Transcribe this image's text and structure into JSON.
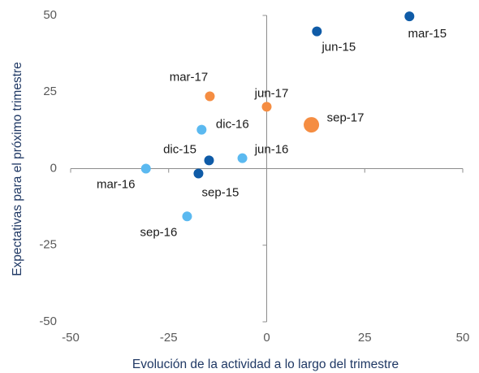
{
  "chart_data": {
    "type": "scatter",
    "x_label": "Evolución de la actividad a lo largo del trimestre",
    "y_label": "Expectativas para el próximo trimestre",
    "xlim": [
      -50,
      50
    ],
    "xticks": [
      -50,
      -25,
      0,
      25,
      50
    ],
    "ylim": [
      -50,
      50
    ],
    "yticks": [
      -50,
      -25,
      0,
      25,
      50
    ],
    "points": [
      {
        "label": "mar-15",
        "x": 36.4,
        "y": 49.7,
        "color": "#0f5ba7"
      },
      {
        "label": "jun-15",
        "x": 12.8,
        "y": 44.8,
        "color": "#0f5ba7"
      },
      {
        "label": "sep-15",
        "x": -17.4,
        "y": -1.6,
        "color": "#0f5ba7"
      },
      {
        "label": "dic-15",
        "x": -14.7,
        "y": 2.7,
        "color": "#0f5ba7"
      },
      {
        "label": "mar-16",
        "x": -30.8,
        "y": 0,
        "color": "#5bb9f0"
      },
      {
        "label": "jun-16",
        "x": -6.2,
        "y": 3.4,
        "color": "#5bb9f0"
      },
      {
        "label": "sep-16",
        "x": -20.3,
        "y": -15.6,
        "color": "#5bb9f0"
      },
      {
        "label": "dic-16",
        "x": -16.6,
        "y": 12.7,
        "color": "#5bb9f0"
      },
      {
        "label": "mar-17",
        "x": -14.5,
        "y": 23.6,
        "color": "#f58d42"
      },
      {
        "label": "jun-17",
        "x": 0,
        "y": 20.2,
        "color": "#f58d42"
      },
      {
        "label": "sep-17",
        "x": 11.4,
        "y": 14.3,
        "color": "#f58d42",
        "highlight": true
      }
    ]
  }
}
